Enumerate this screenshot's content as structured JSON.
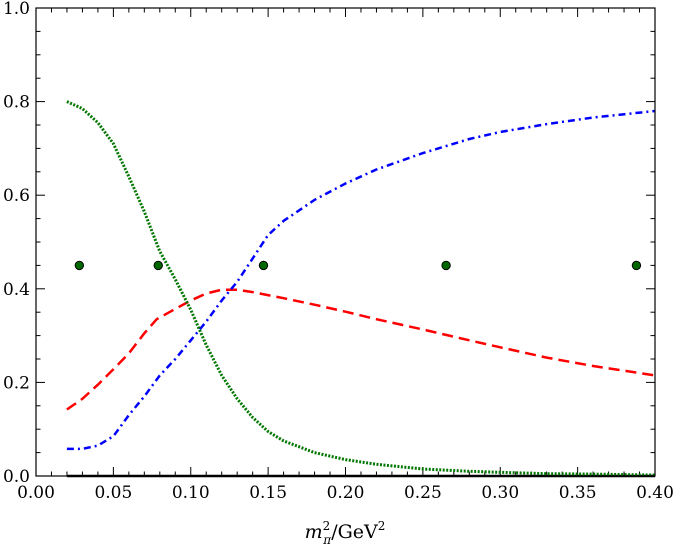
{
  "chart_data": {
    "type": "line",
    "xlabel": {
      "base": "m",
      "sub": "π",
      "sup": "2",
      "rest": "/GeV",
      "rest_sup": "2"
    },
    "xlim": [
      0.0,
      0.4
    ],
    "ylim": [
      0.0,
      1.0
    ],
    "xticks": [
      "0.00",
      "0.05",
      "0.10",
      "0.15",
      "0.20",
      "0.25",
      "0.30",
      "0.35",
      "0.40"
    ],
    "xtick_values": [
      0.0,
      0.05,
      0.1,
      0.15,
      0.2,
      0.25,
      0.3,
      0.35,
      0.4
    ],
    "yticks": [
      "0.0",
      "0.2",
      "0.4",
      "0.6",
      "0.8",
      "1.0"
    ],
    "ytick_values": [
      0.0,
      0.2,
      0.4,
      0.6,
      0.8,
      1.0
    ],
    "grid": false,
    "series": [
      {
        "style": "solid",
        "color": "#000000",
        "x": [
          0.02,
          0.4
        ],
        "y": [
          0.0,
          0.0
        ]
      },
      {
        "style": "dashed",
        "color": "#ff0000",
        "x": [
          0.02,
          0.03,
          0.04,
          0.05,
          0.06,
          0.07,
          0.078,
          0.09,
          0.1,
          0.11,
          0.12,
          0.13,
          0.14,
          0.16,
          0.18,
          0.2,
          0.22,
          0.25,
          0.28,
          0.3,
          0.33,
          0.36,
          0.4
        ],
        "y": [
          0.142,
          0.165,
          0.195,
          0.228,
          0.262,
          0.305,
          0.335,
          0.357,
          0.375,
          0.39,
          0.398,
          0.398,
          0.393,
          0.38,
          0.366,
          0.351,
          0.335,
          0.313,
          0.29,
          0.275,
          0.253,
          0.235,
          0.215
        ]
      },
      {
        "style": "dashdot",
        "color": "#0000ff",
        "x": [
          0.02,
          0.03,
          0.04,
          0.05,
          0.06,
          0.07,
          0.08,
          0.09,
          0.1,
          0.11,
          0.12,
          0.13,
          0.14,
          0.15,
          0.16,
          0.18,
          0.2,
          0.22,
          0.25,
          0.28,
          0.3,
          0.33,
          0.36,
          0.4
        ],
        "y": [
          0.058,
          0.058,
          0.065,
          0.085,
          0.13,
          0.17,
          0.215,
          0.25,
          0.29,
          0.33,
          0.375,
          0.415,
          0.465,
          0.515,
          0.545,
          0.59,
          0.625,
          0.655,
          0.69,
          0.72,
          0.735,
          0.752,
          0.766,
          0.78
        ]
      },
      {
        "style": "dotted",
        "color": "#007700",
        "x": [
          0.02,
          0.03,
          0.04,
          0.05,
          0.06,
          0.07,
          0.08,
          0.09,
          0.1,
          0.11,
          0.12,
          0.13,
          0.14,
          0.15,
          0.16,
          0.18,
          0.2,
          0.22,
          0.25,
          0.28,
          0.3,
          0.33,
          0.36,
          0.4
        ],
        "y": [
          0.8,
          0.785,
          0.755,
          0.71,
          0.64,
          0.565,
          0.48,
          0.42,
          0.355,
          0.28,
          0.215,
          0.165,
          0.125,
          0.095,
          0.075,
          0.05,
          0.035,
          0.025,
          0.015,
          0.01,
          0.008,
          0.005,
          0.004,
          0.002
        ]
      }
    ],
    "points": {
      "color": "#006600",
      "x": [
        0.028,
        0.079,
        0.147,
        0.265,
        0.388
      ],
      "y": [
        0.45,
        0.45,
        0.45,
        0.45,
        0.45
      ]
    }
  }
}
